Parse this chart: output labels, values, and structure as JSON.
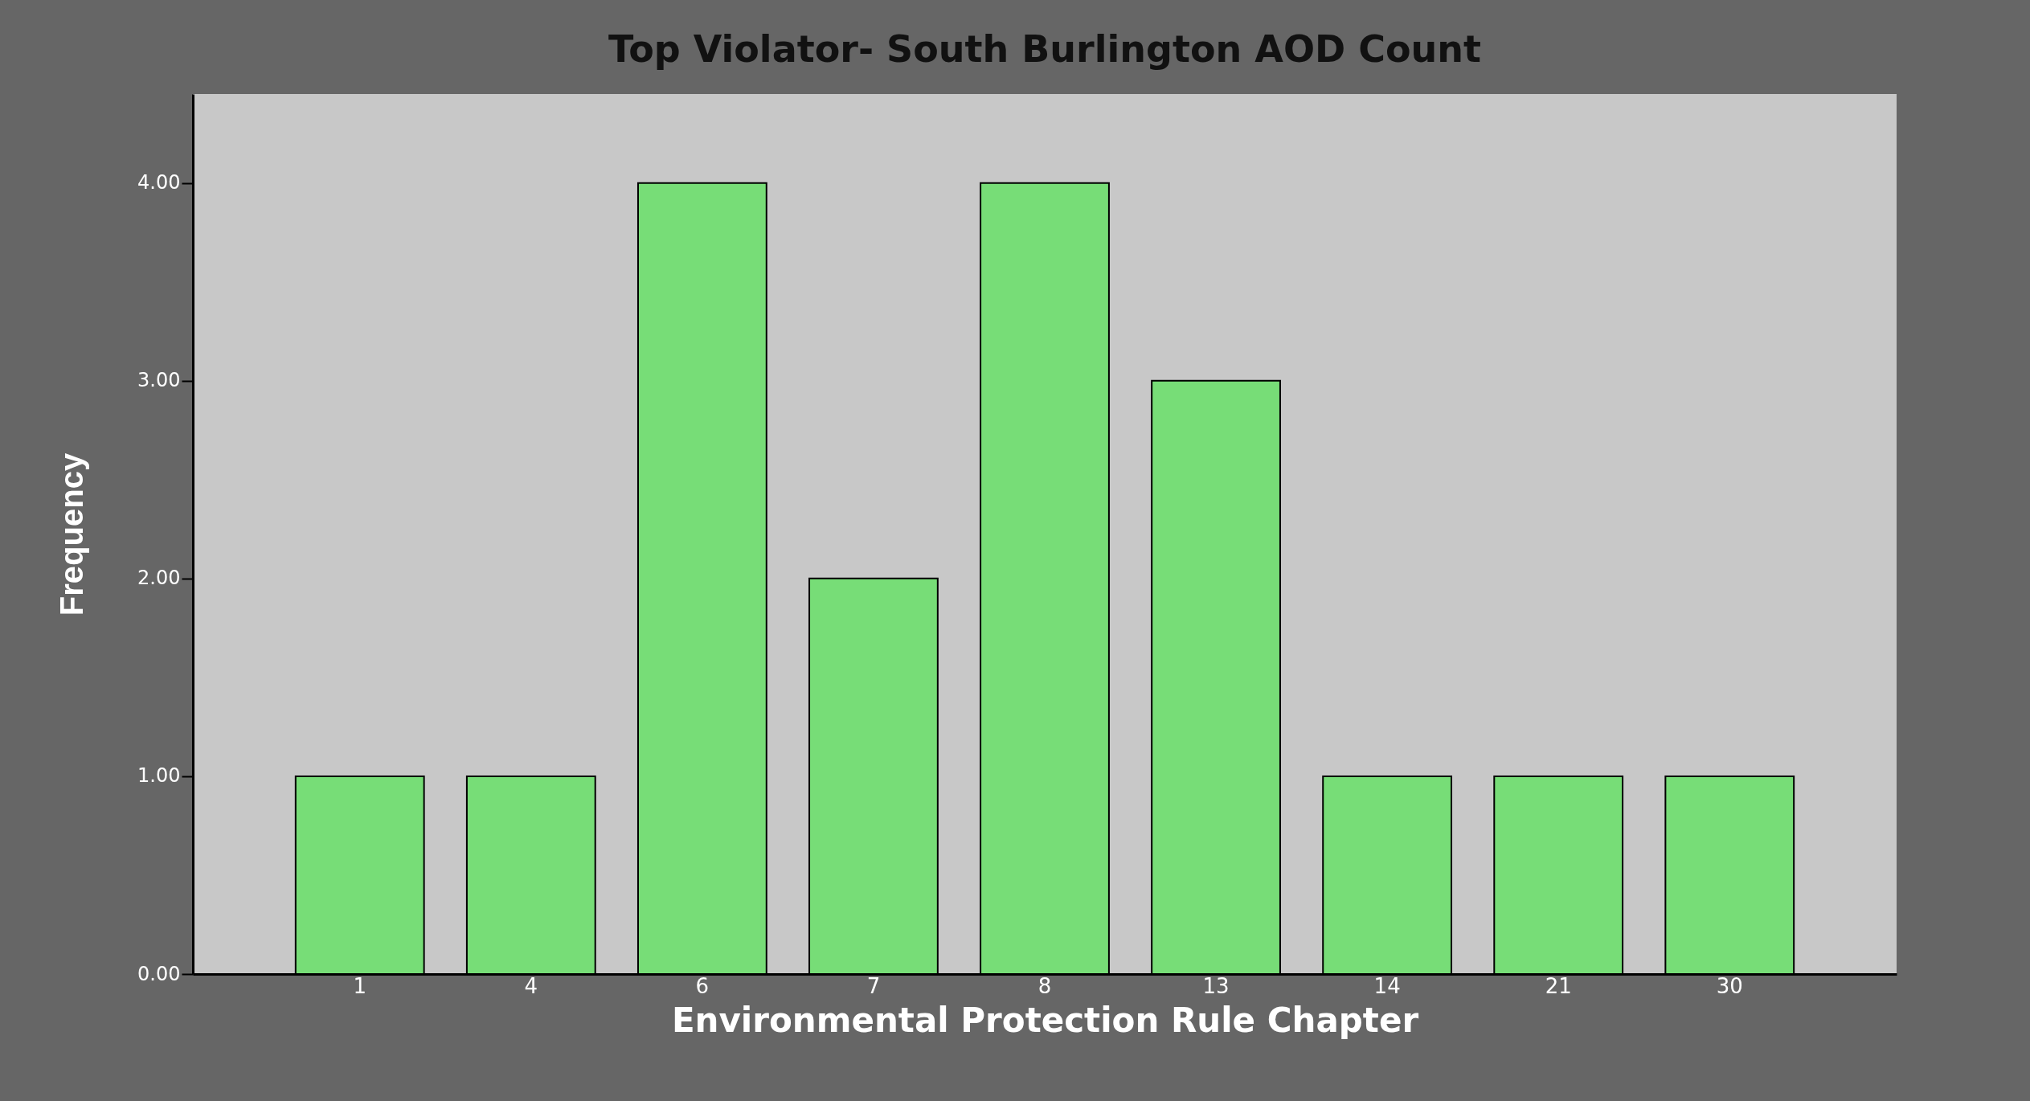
{
  "chart_data": {
    "type": "bar",
    "title": "Top Violator- South Burlington AOD Count",
    "xlabel": "Environmental Protection Rule Chapter",
    "ylabel": "Frequency",
    "categories": [
      "1",
      "4",
      "6",
      "7",
      "8",
      "13",
      "14",
      "21",
      "30"
    ],
    "values": [
      1,
      1,
      4,
      2,
      4,
      3,
      1,
      1,
      1
    ],
    "color": "#77dd77",
    "ylim": [
      0,
      4.45
    ],
    "yticks": [
      {
        "value": 0,
        "label": "0.00"
      },
      {
        "value": 1,
        "label": "1.00"
      },
      {
        "value": 2,
        "label": "2.00"
      },
      {
        "value": 3,
        "label": "3.00"
      },
      {
        "value": 4,
        "label": "4.00"
      }
    ],
    "grid": false
  }
}
